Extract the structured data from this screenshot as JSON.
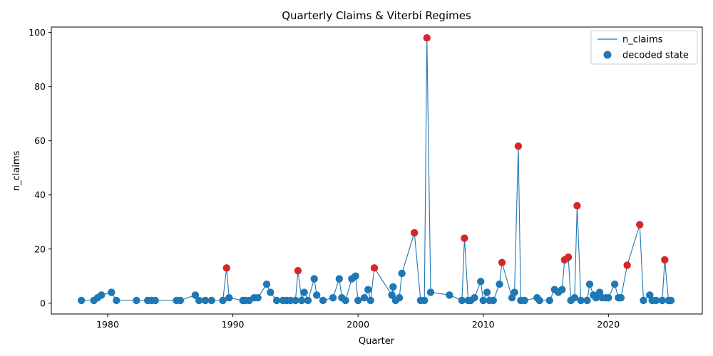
{
  "chart_data": {
    "type": "line",
    "title": "Quarterly Claims & Viterbi Regimes",
    "xlabel": "Quarter",
    "ylabel": "n_claims",
    "xlim": [
      1975.5,
      2027.5
    ],
    "ylim": [
      -4,
      102
    ],
    "xticks": [
      1980,
      1990,
      2000,
      2010,
      2020
    ],
    "yticks": [
      0,
      20,
      40,
      60,
      80,
      100
    ],
    "grid": false,
    "legend_position": "top-right",
    "legend": [
      "n_claims",
      "decoded state"
    ],
    "colors": {
      "line": "#1f77b4",
      "state_low": "#1f77b4",
      "state_high": "#d62728"
    },
    "series": [
      {
        "name": "n_claims",
        "points": [
          [
            1977.9,
            1,
            0
          ],
          [
            1978.9,
            1,
            0
          ],
          [
            1979.2,
            2,
            0
          ],
          [
            1979.5,
            3,
            0
          ],
          [
            1980.3,
            4,
            0
          ],
          [
            1980.7,
            1,
            0
          ],
          [
            1982.3,
            1,
            0
          ],
          [
            1983.2,
            1,
            0
          ],
          [
            1983.5,
            1,
            0
          ],
          [
            1983.8,
            1,
            0
          ],
          [
            1985.5,
            1,
            0
          ],
          [
            1985.8,
            1,
            0
          ],
          [
            1987.0,
            3,
            0
          ],
          [
            1987.3,
            1,
            0
          ],
          [
            1987.8,
            1,
            0
          ],
          [
            1988.3,
            1,
            0
          ],
          [
            1989.2,
            1,
            0
          ],
          [
            1989.5,
            13,
            1
          ],
          [
            1989.7,
            2,
            0
          ],
          [
            1990.8,
            1,
            0
          ],
          [
            1991.0,
            1,
            0
          ],
          [
            1991.3,
            1,
            0
          ],
          [
            1991.7,
            2,
            0
          ],
          [
            1992.0,
            2,
            0
          ],
          [
            1992.7,
            7,
            0
          ],
          [
            1993.0,
            4,
            0
          ],
          [
            1993.5,
            1,
            0
          ],
          [
            1994.0,
            1,
            0
          ],
          [
            1994.3,
            1,
            0
          ],
          [
            1994.6,
            1,
            0
          ],
          [
            1995.0,
            1,
            0
          ],
          [
            1995.2,
            12,
            1
          ],
          [
            1995.5,
            1,
            0
          ],
          [
            1995.7,
            4,
            0
          ],
          [
            1996.0,
            1,
            0
          ],
          [
            1996.5,
            9,
            0
          ],
          [
            1996.7,
            3,
            0
          ],
          [
            1997.2,
            1,
            0
          ],
          [
            1998.0,
            2,
            0
          ],
          [
            1998.5,
            9,
            0
          ],
          [
            1998.7,
            2,
            0
          ],
          [
            1999.0,
            1,
            0
          ],
          [
            1999.5,
            9,
            0
          ],
          [
            1999.8,
            10,
            0
          ],
          [
            2000.0,
            1,
            0
          ],
          [
            2000.5,
            2,
            0
          ],
          [
            2000.8,
            5,
            0
          ],
          [
            2001.0,
            1,
            0
          ],
          [
            2001.3,
            13,
            1
          ],
          [
            2002.7,
            3,
            0
          ],
          [
            2002.8,
            6,
            0
          ],
          [
            2003.0,
            1,
            0
          ],
          [
            2003.3,
            2,
            0
          ],
          [
            2003.5,
            11,
            0
          ],
          [
            2004.5,
            26,
            1
          ],
          [
            2005.0,
            1,
            0
          ],
          [
            2005.3,
            1,
            0
          ],
          [
            2005.5,
            98,
            1
          ],
          [
            2005.8,
            4,
            0
          ],
          [
            2007.3,
            3,
            0
          ],
          [
            2008.3,
            1,
            0
          ],
          [
            2008.5,
            24,
            1
          ],
          [
            2008.8,
            1,
            0
          ],
          [
            2009.0,
            1,
            0
          ],
          [
            2009.3,
            2,
            0
          ],
          [
            2009.8,
            8,
            0
          ],
          [
            2010.0,
            1,
            0
          ],
          [
            2010.3,
            4,
            0
          ],
          [
            2010.5,
            1,
            0
          ],
          [
            2010.8,
            1,
            0
          ],
          [
            2011.3,
            7,
            0
          ],
          [
            2011.5,
            15,
            1
          ],
          [
            2012.3,
            2,
            0
          ],
          [
            2012.5,
            4,
            0
          ],
          [
            2012.8,
            58,
            1
          ],
          [
            2013.0,
            1,
            0
          ],
          [
            2013.3,
            1,
            0
          ],
          [
            2014.3,
            2,
            0
          ],
          [
            2014.5,
            1,
            0
          ],
          [
            2015.3,
            1,
            0
          ],
          [
            2015.7,
            5,
            0
          ],
          [
            2016.0,
            4,
            0
          ],
          [
            2016.3,
            5,
            0
          ],
          [
            2016.5,
            16,
            1
          ],
          [
            2016.8,
            17,
            1
          ],
          [
            2017.0,
            1,
            0
          ],
          [
            2017.3,
            2,
            0
          ],
          [
            2017.5,
            36,
            1
          ],
          [
            2017.8,
            1,
            0
          ],
          [
            2018.3,
            1,
            0
          ],
          [
            2018.5,
            7,
            0
          ],
          [
            2018.8,
            3,
            0
          ],
          [
            2019.0,
            2,
            0
          ],
          [
            2019.3,
            4,
            0
          ],
          [
            2019.5,
            2,
            0
          ],
          [
            2019.8,
            2,
            0
          ],
          [
            2020.0,
            2,
            0
          ],
          [
            2020.5,
            7,
            0
          ],
          [
            2020.8,
            2,
            0
          ],
          [
            2021.0,
            2,
            0
          ],
          [
            2021.5,
            14,
            1
          ],
          [
            2022.5,
            29,
            1
          ],
          [
            2022.8,
            1,
            0
          ],
          [
            2023.3,
            3,
            0
          ],
          [
            2023.5,
            1,
            0
          ],
          [
            2023.8,
            1,
            0
          ],
          [
            2024.3,
            1,
            0
          ],
          [
            2024.5,
            16,
            1
          ],
          [
            2024.8,
            1,
            0
          ],
          [
            2025.0,
            1,
            0
          ]
        ]
      }
    ]
  }
}
